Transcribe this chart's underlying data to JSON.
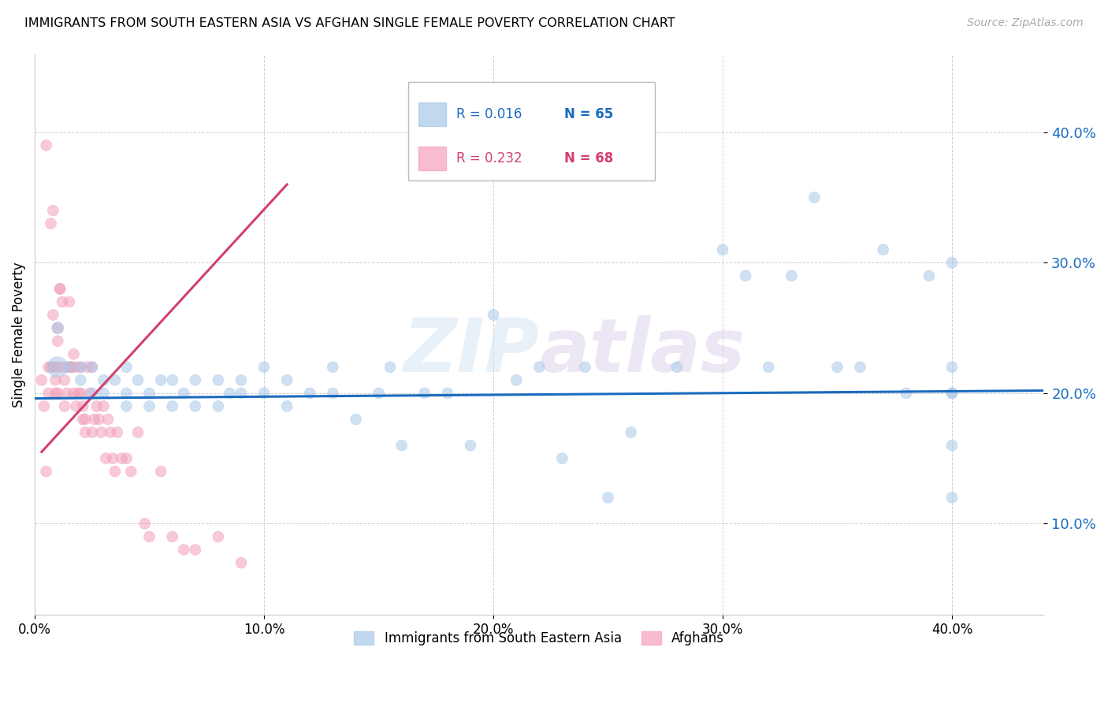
{
  "title": "IMMIGRANTS FROM SOUTH EASTERN ASIA VS AFGHAN SINGLE FEMALE POVERTY CORRELATION CHART",
  "source": "Source: ZipAtlas.com",
  "ylabel": "Single Female Poverty",
  "ytick_labels": [
    "10.0%",
    "20.0%",
    "30.0%",
    "40.0%"
  ],
  "ytick_values": [
    0.1,
    0.2,
    0.3,
    0.4
  ],
  "xtick_labels": [
    "0.0%",
    "10.0%",
    "20.0%",
    "30.0%",
    "40.0%"
  ],
  "xtick_values": [
    0.0,
    0.1,
    0.2,
    0.3,
    0.4
  ],
  "xlim": [
    0.0,
    0.44
  ],
  "ylim": [
    0.03,
    0.46
  ],
  "legend_label_blue": "Immigrants from South Eastern Asia",
  "legend_label_pink": "Afghans",
  "color_blue": "#a8c8e8",
  "color_pink": "#f4a0b8",
  "color_blue_line": "#1a6bbf",
  "color_pink_line": "#d44070",
  "watermark": "ZIPatlas",
  "blue_R": "0.016",
  "blue_N": "65",
  "pink_R": "0.232",
  "pink_N": "68",
  "blue_x": [
    0.01,
    0.01,
    0.015,
    0.02,
    0.02,
    0.025,
    0.025,
    0.03,
    0.03,
    0.035,
    0.04,
    0.04,
    0.04,
    0.045,
    0.05,
    0.05,
    0.055,
    0.06,
    0.06,
    0.065,
    0.07,
    0.07,
    0.08,
    0.08,
    0.085,
    0.09,
    0.09,
    0.1,
    0.1,
    0.11,
    0.11,
    0.12,
    0.13,
    0.13,
    0.14,
    0.15,
    0.155,
    0.16,
    0.17,
    0.18,
    0.19,
    0.2,
    0.21,
    0.22,
    0.23,
    0.24,
    0.25,
    0.26,
    0.28,
    0.3,
    0.31,
    0.32,
    0.33,
    0.34,
    0.35,
    0.36,
    0.37,
    0.38,
    0.39,
    0.4,
    0.4,
    0.4,
    0.4,
    0.4,
    0.4
  ],
  "blue_y": [
    0.22,
    0.25,
    0.22,
    0.22,
    0.21,
    0.22,
    0.2,
    0.21,
    0.2,
    0.21,
    0.2,
    0.22,
    0.19,
    0.21,
    0.2,
    0.19,
    0.21,
    0.19,
    0.21,
    0.2,
    0.19,
    0.21,
    0.21,
    0.19,
    0.2,
    0.21,
    0.2,
    0.22,
    0.2,
    0.21,
    0.19,
    0.2,
    0.2,
    0.22,
    0.18,
    0.2,
    0.22,
    0.16,
    0.2,
    0.2,
    0.16,
    0.26,
    0.21,
    0.22,
    0.15,
    0.22,
    0.12,
    0.17,
    0.22,
    0.31,
    0.29,
    0.22,
    0.29,
    0.35,
    0.22,
    0.22,
    0.31,
    0.2,
    0.29,
    0.22,
    0.2,
    0.3,
    0.2,
    0.16,
    0.12
  ],
  "blue_sizes": [
    350,
    120,
    100,
    100,
    100,
    100,
    100,
    100,
    100,
    100,
    100,
    100,
    100,
    100,
    100,
    100,
    100,
    100,
    100,
    100,
    100,
    100,
    100,
    100,
    100,
    100,
    100,
    100,
    100,
    100,
    100,
    100,
    100,
    100,
    100,
    100,
    100,
    100,
    100,
    100,
    100,
    100,
    100,
    100,
    100,
    100,
    100,
    100,
    100,
    100,
    100,
    100,
    100,
    100,
    100,
    100,
    100,
    100,
    100,
    100,
    100,
    100,
    100,
    100,
    100
  ],
  "pink_x": [
    0.003,
    0.004,
    0.005,
    0.005,
    0.006,
    0.006,
    0.007,
    0.007,
    0.008,
    0.008,
    0.008,
    0.009,
    0.009,
    0.009,
    0.01,
    0.01,
    0.01,
    0.01,
    0.011,
    0.011,
    0.012,
    0.012,
    0.013,
    0.013,
    0.014,
    0.014,
    0.015,
    0.015,
    0.016,
    0.016,
    0.017,
    0.017,
    0.018,
    0.018,
    0.019,
    0.02,
    0.02,
    0.021,
    0.021,
    0.022,
    0.022,
    0.023,
    0.024,
    0.025,
    0.025,
    0.026,
    0.027,
    0.028,
    0.029,
    0.03,
    0.031,
    0.032,
    0.033,
    0.034,
    0.035,
    0.036,
    0.038,
    0.04,
    0.042,
    0.045,
    0.048,
    0.05,
    0.055,
    0.06,
    0.065,
    0.07,
    0.08,
    0.09
  ],
  "pink_y": [
    0.21,
    0.19,
    0.39,
    0.14,
    0.22,
    0.2,
    0.33,
    0.22,
    0.34,
    0.26,
    0.22,
    0.22,
    0.21,
    0.2,
    0.25,
    0.24,
    0.22,
    0.2,
    0.28,
    0.28,
    0.27,
    0.22,
    0.21,
    0.19,
    0.2,
    0.22,
    0.27,
    0.22,
    0.22,
    0.22,
    0.23,
    0.2,
    0.22,
    0.19,
    0.2,
    0.22,
    0.2,
    0.19,
    0.18,
    0.17,
    0.18,
    0.22,
    0.2,
    0.22,
    0.17,
    0.18,
    0.19,
    0.18,
    0.17,
    0.19,
    0.15,
    0.18,
    0.17,
    0.15,
    0.14,
    0.17,
    0.15,
    0.15,
    0.14,
    0.17,
    0.1,
    0.09,
    0.14,
    0.09,
    0.08,
    0.08,
    0.09,
    0.07
  ],
  "pink_sizes": [
    100,
    100,
    100,
    100,
    100,
    100,
    100,
    100,
    100,
    100,
    100,
    100,
    100,
    100,
    100,
    100,
    100,
    100,
    100,
    100,
    100,
    100,
    100,
    100,
    100,
    100,
    100,
    100,
    100,
    100,
    100,
    100,
    100,
    100,
    100,
    100,
    100,
    100,
    100,
    100,
    100,
    100,
    100,
    100,
    100,
    100,
    100,
    100,
    100,
    100,
    100,
    100,
    100,
    100,
    100,
    100,
    100,
    100,
    100,
    100,
    100,
    100,
    100,
    100,
    100,
    100,
    100,
    100
  ],
  "pink_trend_x": [
    0.003,
    0.11
  ],
  "pink_trend_y": [
    0.155,
    0.36
  ],
  "blue_trend_x": [
    0.0,
    0.44
  ],
  "blue_trend_y": [
    0.196,
    0.202
  ]
}
